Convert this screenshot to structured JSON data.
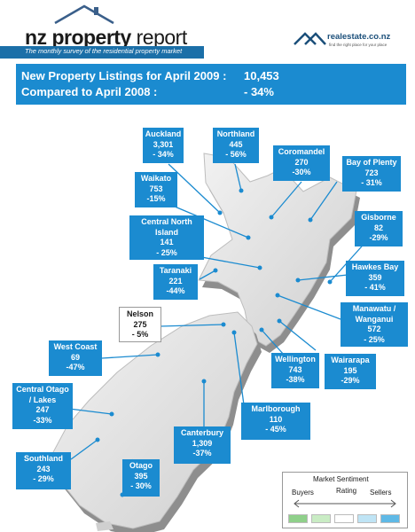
{
  "header": {
    "title_bold": "nz property",
    "title_rest": " report",
    "tagline": "The monthly survey of the residential property market",
    "brand": "realestate.co.nz",
    "brand_tag": "find the right place for your place"
  },
  "stats": {
    "listings_label": "New Property Listings for April 2009 :",
    "listings_value": "10,453",
    "compare_label": "Compared to April 2008 :",
    "compare_value": "- 34%"
  },
  "regions": [
    {
      "name": "Auckland",
      "value": "3,301",
      "change": "- 34%"
    },
    {
      "name": "Northland",
      "value": "445",
      "change": "- 56%"
    },
    {
      "name": "Coromandel",
      "value": "270",
      "change": "-30%"
    },
    {
      "name": "Bay of Plenty",
      "value": "723",
      "change": "- 31%"
    },
    {
      "name": "Waikato",
      "value": "753",
      "change": "-15%"
    },
    {
      "name": "Gisborne",
      "value": "82",
      "change": "-29%"
    },
    {
      "name": "Central North",
      "name2": "Island",
      "value": "141",
      "change": "- 25%"
    },
    {
      "name": "Hawkes Bay",
      "value": "359",
      "change": "- 41%"
    },
    {
      "name": "Taranaki",
      "value": "221",
      "change": "-44%"
    },
    {
      "name": "Manawatu /",
      "name2": "Wanganui",
      "value": "572",
      "change": "- 25%"
    },
    {
      "name": "Nelson",
      "value": "275",
      "change": "- 5%"
    },
    {
      "name": "West Coast",
      "value": "69",
      "change": "-47%"
    },
    {
      "name": "Wellington",
      "value": "743",
      "change": "-38%"
    },
    {
      "name": "Wairarapa",
      "value": "195",
      "change": "-29%"
    },
    {
      "name": "Central Otago",
      "name2": "/ Lakes",
      "value": "247",
      "change": "-33%"
    },
    {
      "name": "Marlborough",
      "value": "110",
      "change": "- 45%"
    },
    {
      "name": "Canterbury",
      "value": "1,309",
      "change": "-37%"
    },
    {
      "name": "Southland",
      "value": "243",
      "change": "- 29%"
    },
    {
      "name": "Otago",
      "value": "395",
      "change": "- 30%"
    }
  ],
  "legend": {
    "title": "Market Sentiment",
    "rating": "Rating",
    "buyers": "Buyers",
    "sellers": "Sellers",
    "colors": [
      "#8fd08a",
      "#c9ecc4",
      "#ffffff",
      "#bfe4f5",
      "#5fb9e6"
    ]
  },
  "colors": {
    "accent": "#1b8bd0",
    "bar": "#1b6fa8"
  }
}
